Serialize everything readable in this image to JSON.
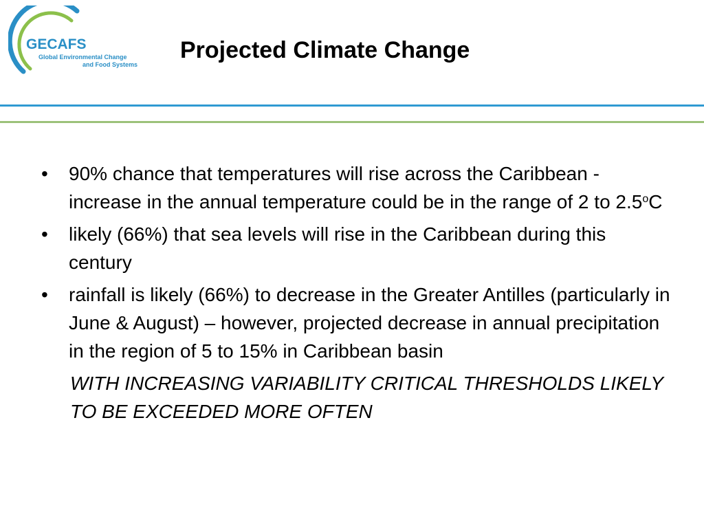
{
  "logo": {
    "name": "GECAFS",
    "subtitle_line1": "Global Environmental Change",
    "subtitle_line2": "and Food Systems",
    "arc_color_outer": "#2a8fc6",
    "arc_color_inner": "#8cc04b"
  },
  "slide": {
    "title": "Projected Climate Change",
    "bullet_symbol": "•",
    "bullets": [
      {
        "text_before_sup": "90% chance that temperatures will rise across the Caribbean - increase in the annual temperature could be in the range of 2 to 2.5",
        "sup": "o",
        "text_after_sup": "C"
      },
      {
        "text": "likely (66%) that sea levels will rise in the Caribbean during this century"
      },
      {
        "text": "rainfall is likely (66%) to decrease in the Greater Antilles (particularly in June & August) – however, projected decrease in annual precipitation in the region of 5 to 15% in Caribbean basin"
      }
    ],
    "emphasis": "WITH INCREASING VARIABILITY CRITICAL THRESHOLDS LIKELY TO BE EXCEEDED MORE OFTEN"
  },
  "colors": {
    "rule_top": "#2f9ad2",
    "rule_bottom": "#9cc27a",
    "text": "#000000"
  }
}
